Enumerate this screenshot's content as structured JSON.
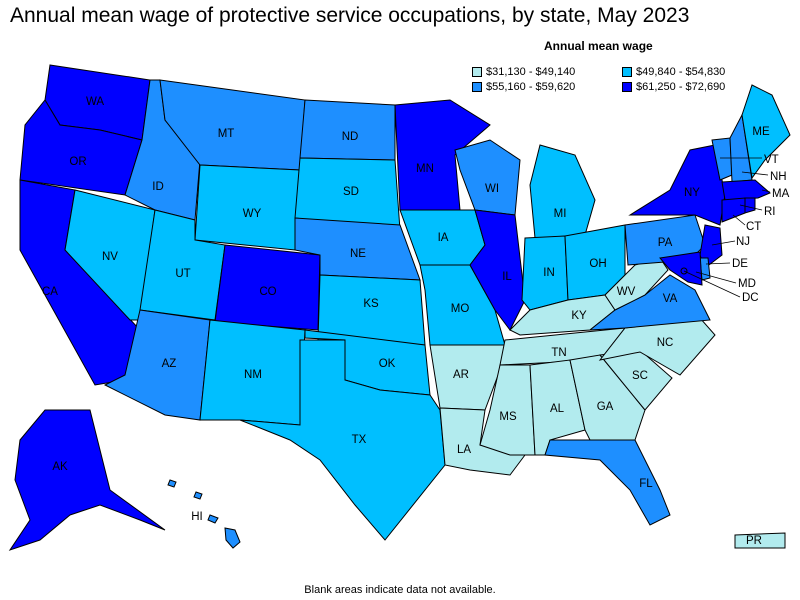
{
  "title": "Annual mean wage of protective service occupations, by state, May 2023",
  "legend": {
    "title": "Annual mean wage",
    "items": [
      {
        "label": "$31,130 - $49,140",
        "color": "#b2ebee"
      },
      {
        "label": "$49,840 - $54,830",
        "color": "#00bfff"
      },
      {
        "label": "$55,160 - $59,620",
        "color": "#1e8fff"
      },
      {
        "label": "$61,250 - $72,690",
        "color": "#0000ff"
      }
    ]
  },
  "states": [
    {
      "code": "WA",
      "tier": 3
    },
    {
      "code": "OR",
      "tier": 3
    },
    {
      "code": "CA",
      "tier": 3
    },
    {
      "code": "NV",
      "tier": 1
    },
    {
      "code": "ID",
      "tier": 2
    },
    {
      "code": "MT",
      "tier": 2
    },
    {
      "code": "WY",
      "tier": 1
    },
    {
      "code": "UT",
      "tier": 1
    },
    {
      "code": "AZ",
      "tier": 2
    },
    {
      "code": "CO",
      "tier": 3
    },
    {
      "code": "NM",
      "tier": 1
    },
    {
      "code": "ND",
      "tier": 2
    },
    {
      "code": "SD",
      "tier": 1
    },
    {
      "code": "NE",
      "tier": 2
    },
    {
      "code": "KS",
      "tier": 1
    },
    {
      "code": "OK",
      "tier": 1
    },
    {
      "code": "TX",
      "tier": 1
    },
    {
      "code": "MN",
      "tier": 3
    },
    {
      "code": "IA",
      "tier": 1
    },
    {
      "code": "MO",
      "tier": 1
    },
    {
      "code": "AR",
      "tier": 0
    },
    {
      "code": "LA",
      "tier": 0
    },
    {
      "code": "WI",
      "tier": 2
    },
    {
      "code": "IL",
      "tier": 3
    },
    {
      "code": "MI",
      "tier": 1
    },
    {
      "code": "IN",
      "tier": 1
    },
    {
      "code": "OH",
      "tier": 1
    },
    {
      "code": "KY",
      "tier": 0
    },
    {
      "code": "TN",
      "tier": 0
    },
    {
      "code": "MS",
      "tier": 0
    },
    {
      "code": "AL",
      "tier": 0
    },
    {
      "code": "GA",
      "tier": 0
    },
    {
      "code": "FL",
      "tier": 2
    },
    {
      "code": "SC",
      "tier": 0
    },
    {
      "code": "NC",
      "tier": 0
    },
    {
      "code": "VA",
      "tier": 2
    },
    {
      "code": "WV",
      "tier": 0
    },
    {
      "code": "PA",
      "tier": 2
    },
    {
      "code": "NY",
      "tier": 3
    },
    {
      "code": "VT",
      "tier": 2
    },
    {
      "code": "NH",
      "tier": 2
    },
    {
      "code": "ME",
      "tier": 1
    },
    {
      "code": "MA",
      "tier": 3
    },
    {
      "code": "RI",
      "tier": 3
    },
    {
      "code": "CT",
      "tier": 3
    },
    {
      "code": "NJ",
      "tier": 3
    },
    {
      "code": "DE",
      "tier": 2
    },
    {
      "code": "MD",
      "tier": 3
    },
    {
      "code": "DC",
      "tier": 3
    },
    {
      "code": "AK",
      "tier": 3
    },
    {
      "code": "HI",
      "tier": 2
    },
    {
      "code": "PR",
      "tier": 0
    }
  ],
  "footnote": "Blank areas indicate data not available."
}
